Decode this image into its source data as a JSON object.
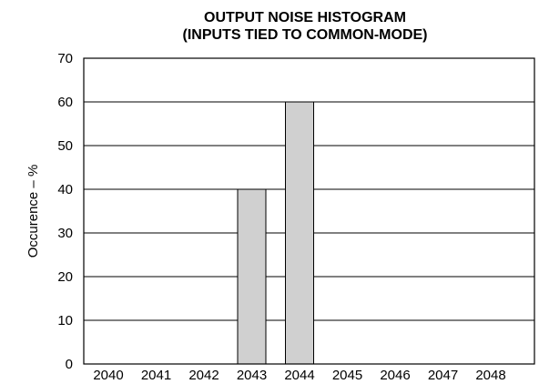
{
  "chart_data": {
    "type": "bar",
    "title_lines": [
      "OUTPUT NOISE HISTOGRAM",
      "(INPUTS TIED TO COMMON-MODE)"
    ],
    "xlabel": "",
    "ylabel": "Occurence – %",
    "categories": [
      "2040",
      "2041",
      "2042",
      "2043",
      "2044",
      "2045",
      "2046",
      "2047",
      "2048"
    ],
    "values": [
      0,
      0,
      0,
      40,
      60,
      0,
      0,
      0,
      0
    ],
    "ylim": [
      0,
      70
    ],
    "yticks": [
      "0",
      "10",
      "20",
      "30",
      "40",
      "50",
      "60",
      "70"
    ],
    "grid": true,
    "colors": {
      "bar_fill": "#d0d0d0",
      "bar_stroke": "#000000"
    }
  }
}
